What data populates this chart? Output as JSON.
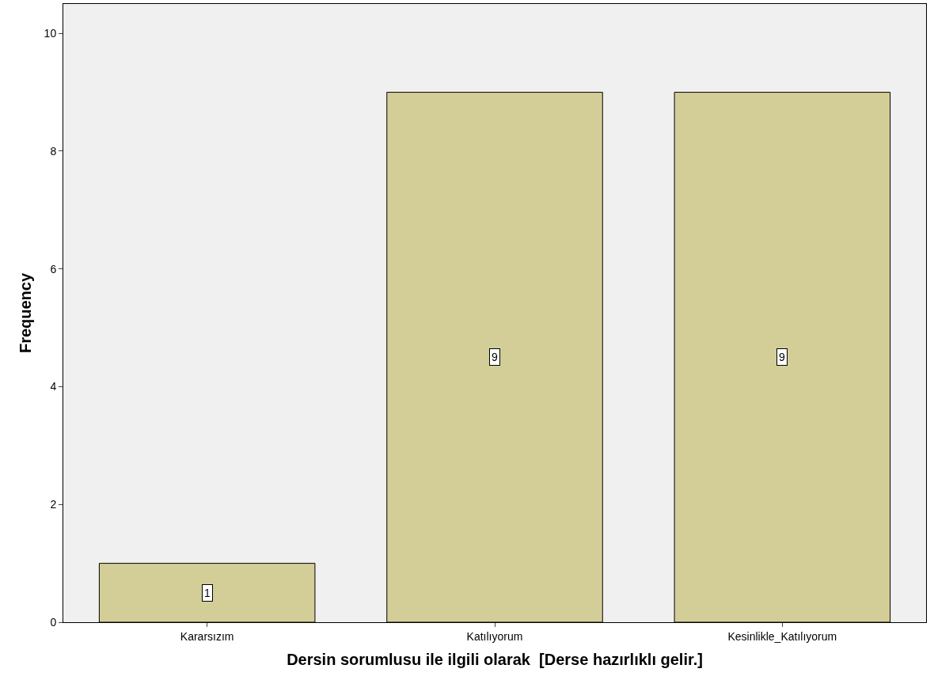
{
  "chart_data": {
    "type": "bar",
    "xlabel": "Dersin sorumlusu ile ilgili olarak  [Derse hazırlıklı gelir.]",
    "ylabel": "Frequency",
    "categories": [
      "Kararsızım",
      "Katılıyorum",
      "Kesinlikle_Katılıyorum"
    ],
    "values": [
      1,
      9,
      9
    ],
    "color": "#d3ce97",
    "ylim": [
      0,
      10.5
    ],
    "yticks": [
      0,
      2,
      4,
      6,
      8,
      10
    ],
    "grid": false,
    "legend": false,
    "data_labels": true
  }
}
